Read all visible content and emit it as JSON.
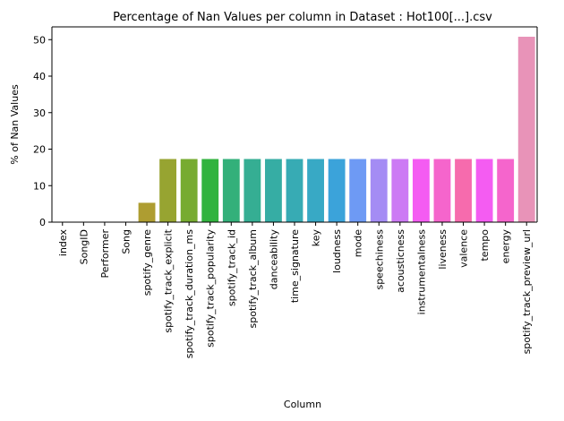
{
  "chart_data": {
    "type": "bar",
    "title": "Percentage of Nan Values per column in Dataset : Hot100[...].csv",
    "xlabel": "Column",
    "ylabel": "% of Nan Values",
    "ylim": [
      0,
      53.5
    ],
    "yticks": [
      0,
      10,
      20,
      30,
      40,
      50
    ],
    "grid": false,
    "categories": [
      "index",
      "SongID",
      "Performer",
      "Song",
      "spotify_genre",
      "spotify_track_explicit",
      "spotify_track_duration_ms",
      "spotify_track_popularity",
      "spotify_track_id",
      "spotify_track_album",
      "danceability",
      "time_signature",
      "key",
      "loudness",
      "mode",
      "speechiness",
      "acousticness",
      "instrumentalness",
      "liveness",
      "valence",
      "tempo",
      "energy",
      "spotify_track_preview_url"
    ],
    "values": [
      0,
      0,
      0,
      0,
      5.3,
      17.3,
      17.3,
      17.3,
      17.3,
      17.3,
      17.3,
      17.3,
      17.3,
      17.3,
      17.3,
      17.3,
      17.3,
      17.3,
      17.3,
      17.3,
      17.3,
      17.3,
      50.8
    ],
    "colors": [
      "#f77189",
      "#f7754f",
      "#dc8932",
      "#c39532",
      "#ae9d31",
      "#97a431",
      "#77ab31",
      "#31b33e",
      "#33b07a",
      "#35ae93",
      "#36ada4",
      "#37abb4",
      "#38a9c5",
      "#3ba3da",
      "#6e9af4",
      "#a48cf4",
      "#cc7af4",
      "#f45cf2",
      "#f565cc",
      "#f66bad",
      "#f45cf2",
      "#f565cc",
      "#e893b8"
    ]
  }
}
